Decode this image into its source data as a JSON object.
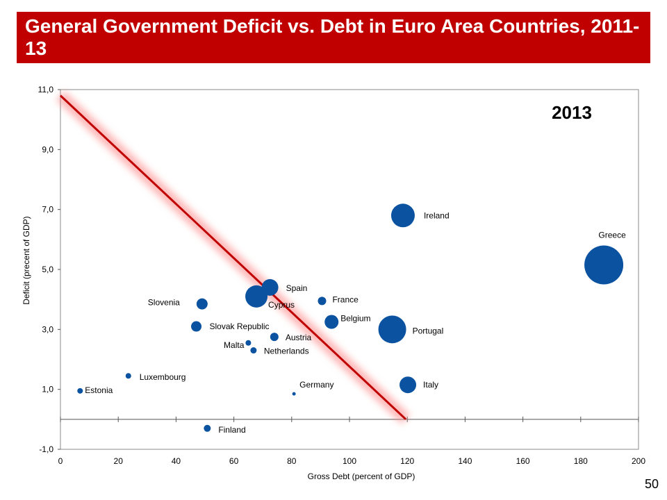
{
  "title": "General Government Deficit vs. Debt in Euro Area Countries, 2011-13",
  "page_number": "50",
  "colors": {
    "title_bg": "#c00000",
    "bubble": "#0b52a0",
    "trend_line": "#c00000",
    "trend_glow": "#ff8080"
  },
  "chart_data": {
    "type": "scatter",
    "annotation": "2013",
    "xlabel": "Gross Debt  (percent of GDP)",
    "ylabel": "Deficit  (precent of GDP)",
    "xlim": [
      0,
      200
    ],
    "ylim": [
      -1.0,
      11.0
    ],
    "x_ticks": [
      0,
      20,
      40,
      60,
      80,
      100,
      120,
      140,
      160,
      180,
      200
    ],
    "x_tick_labels": [
      "0",
      "20",
      "40",
      "60",
      "80",
      "100",
      "120",
      "140",
      "160",
      "180",
      "200"
    ],
    "y_ticks": [
      -1.0,
      1.0,
      3.0,
      5.0,
      7.0,
      9.0,
      11.0
    ],
    "y_tick_labels": [
      "-1,0",
      "1,0",
      "3,0",
      "5,0",
      "7,0",
      "9,0",
      "11,0"
    ],
    "grid": false,
    "trend_line": {
      "x": [
        0,
        119.5
      ],
      "y": [
        10.8,
        0
      ]
    },
    "points": [
      {
        "label": "Ireland",
        "x": 118.5,
        "y": 6.8,
        "size": 17
      },
      {
        "label": "Greece",
        "x": 188,
        "y": 5.15,
        "size": 28
      },
      {
        "label": "Spain",
        "x": 72.5,
        "y": 4.4,
        "size": 12
      },
      {
        "label": "Cyprus",
        "x": 67.8,
        "y": 4.1,
        "size": 16
      },
      {
        "label": "Slovenia",
        "x": 49,
        "y": 3.85,
        "size": 8
      },
      {
        "label": "France",
        "x": 90.5,
        "y": 3.95,
        "size": 6
      },
      {
        "label": "Belgium",
        "x": 93.8,
        "y": 3.25,
        "size": 10
      },
      {
        "label": "Portugal",
        "x": 114.8,
        "y": 3.0,
        "size": 20
      },
      {
        "label": "Slovak Republic",
        "x": 47,
        "y": 3.1,
        "size": 7.5
      },
      {
        "label": "Austria",
        "x": 74,
        "y": 2.75,
        "size": 6
      },
      {
        "label": "Malta",
        "x": 65,
        "y": 2.55,
        "size": 4
      },
      {
        "label": "Netherlands",
        "x": 66.8,
        "y": 2.3,
        "size": 4.5
      },
      {
        "label": "Luxembourg",
        "x": 23.5,
        "y": 1.45,
        "size": 4
      },
      {
        "label": "Estonia",
        "x": 6.8,
        "y": 0.95,
        "size": 4
      },
      {
        "label": "Germany",
        "x": 80.8,
        "y": 0.85,
        "size": 2.5
      },
      {
        "label": "Italy",
        "x": 120.2,
        "y": 1.15,
        "size": 12
      },
      {
        "label": "Finland",
        "x": 50.8,
        "y": -0.3,
        "size": 5
      }
    ]
  }
}
